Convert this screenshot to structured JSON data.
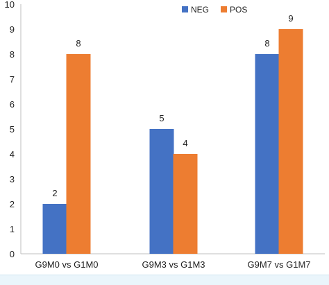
{
  "chart_data": {
    "type": "bar",
    "categories": [
      "G9M0 vs G1M0",
      "G9M3 vs G1M3",
      "G9M7 vs G1M7"
    ],
    "series": [
      {
        "name": "NEG",
        "color": "#4472c4",
        "values": [
          2,
          5,
          8
        ]
      },
      {
        "name": "POS",
        "color": "#ed7d31",
        "values": [
          8,
          4,
          9
        ]
      }
    ],
    "yticks": [
      "0",
      "1",
      "2",
      "3",
      "4",
      "5",
      "6",
      "7",
      "8",
      "9",
      "10"
    ],
    "ylim": [
      0,
      10
    ],
    "grid": false,
    "legend": "top-right"
  }
}
